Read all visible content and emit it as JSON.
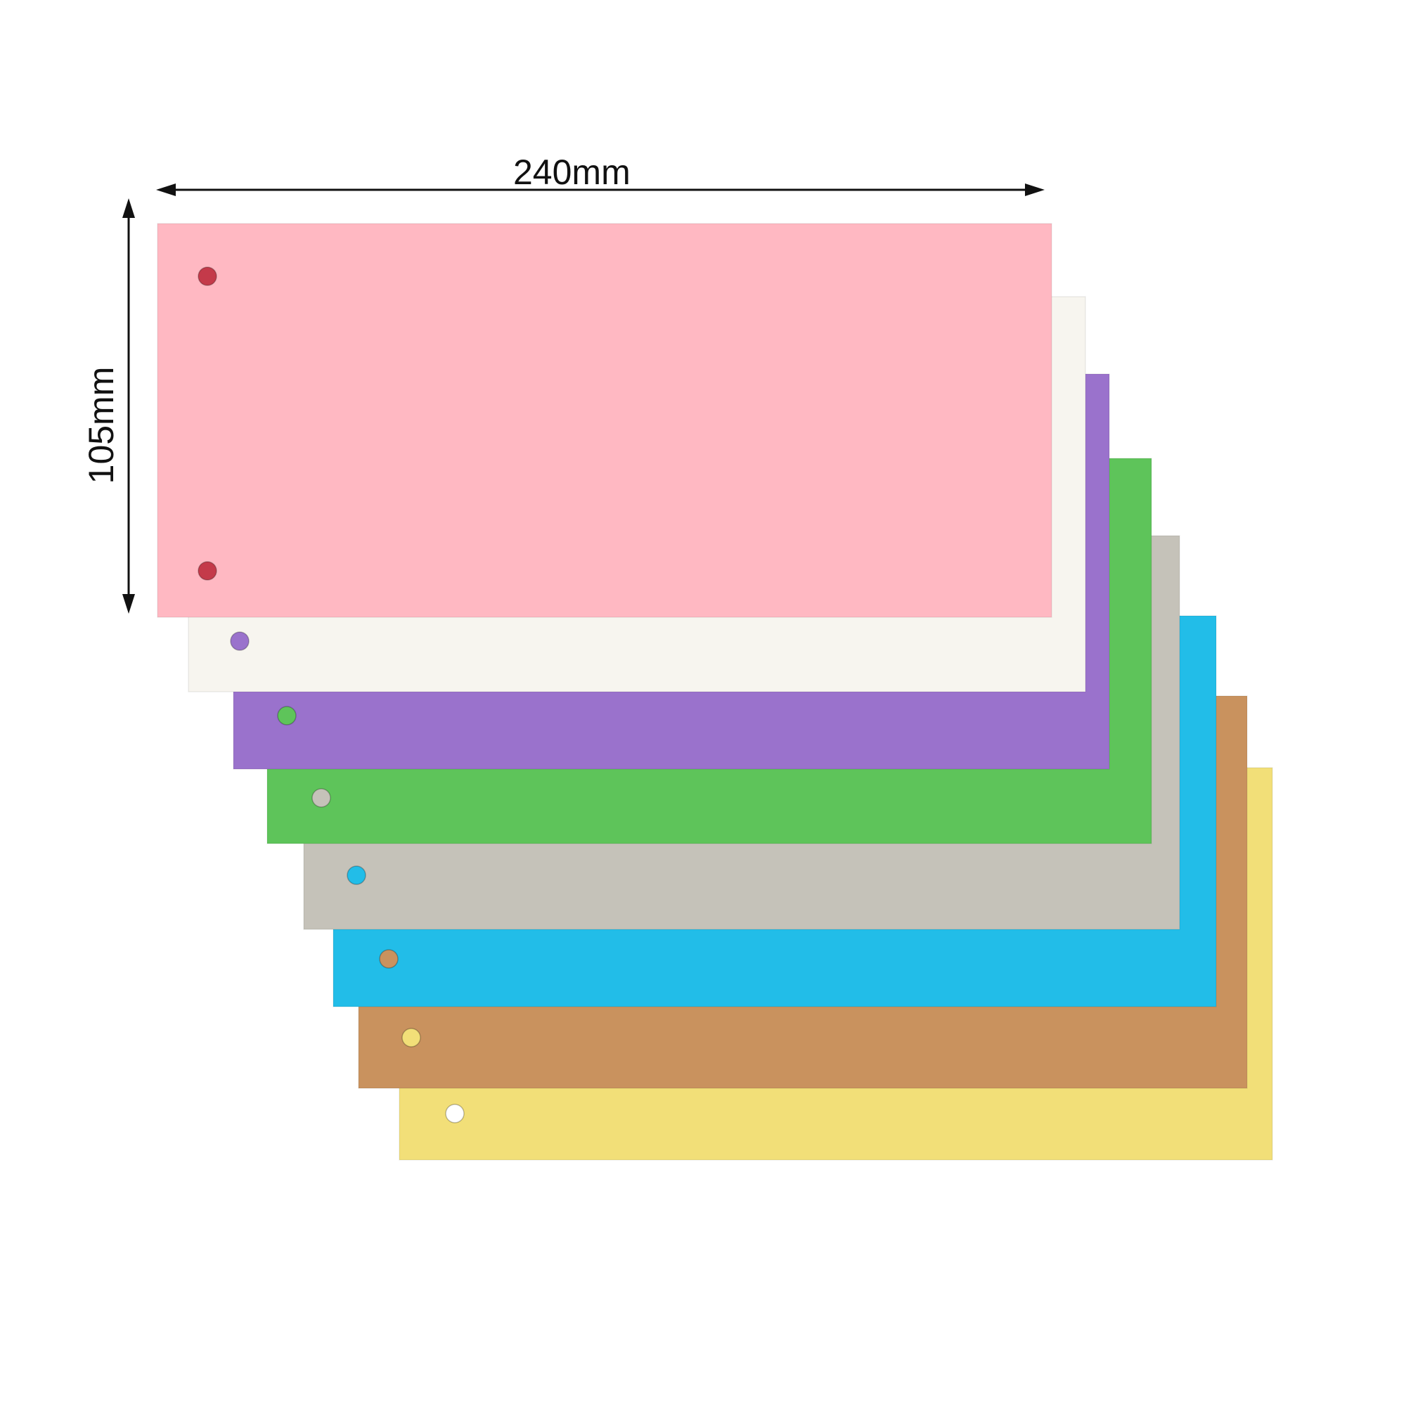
{
  "dimensions": {
    "width_label": "240mm",
    "height_label": "105mm"
  },
  "sheets": [
    {
      "name": "pink",
      "color": "#ffb8c2",
      "hole_color": "#c43a4a"
    },
    {
      "name": "white",
      "color": "#f7f5ef",
      "hole_color": "#9a72cc"
    },
    {
      "name": "purple",
      "color": "#9a72cc",
      "hole_color": "#5ec45a"
    },
    {
      "name": "green",
      "color": "#5ec45a",
      "hole_color": "#c5c2b9"
    },
    {
      "name": "grey",
      "color": "#c5c2b9",
      "hole_color": "#22bde8"
    },
    {
      "name": "blue",
      "color": "#22bde8",
      "hole_color": "#c9925e"
    },
    {
      "name": "kraft",
      "color": "#c9925e",
      "hole_color": "#f2df78"
    },
    {
      "name": "yellow",
      "color": "#f2df78",
      "hole_color": "#ffffff"
    }
  ],
  "arrow_color": "#111111"
}
